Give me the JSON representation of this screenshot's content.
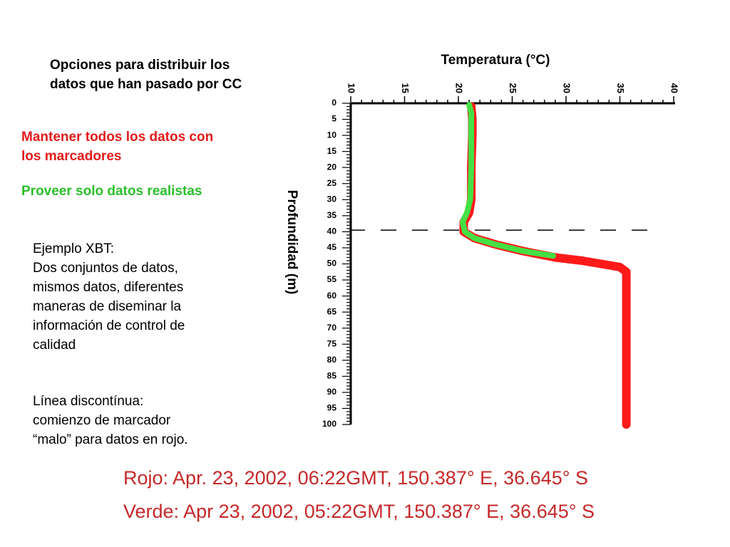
{
  "colors": {
    "red_series": "#ff1a1a",
    "green_series": "#44e044",
    "red_text": "#e31a1a",
    "green_text": "#2bbf2b",
    "caption_text": "#c62828"
  },
  "notes": {
    "intro": [
      "Opciones para distribuir los",
      "datos que han pasado por CC"
    ],
    "keep_markers": [
      "Mantener todos los datos con",
      "los marcadores"
    ],
    "realistic_only": "Proveer solo datos realistas",
    "xbt_example": [
      "Ejemplo XBT:",
      "Dos conjuntos de datos,",
      "mismos datos, diferentes",
      "maneras de diseminar la",
      "información de control de",
      "calidad"
    ],
    "dashed_line": [
      "Línea discontínua:",
      "comienzo de marcador",
      "“malo” para datos en rojo."
    ]
  },
  "captions": {
    "red": "Rojo: Apr. 23, 2002,  06:22GMT, 150.387° E, 36.645° S",
    "green": "Verde: Apr 23, 2002, 05:22GMT, 150.387° E, 36.645° S"
  },
  "chart_data": {
    "type": "line",
    "xlabel": "Temperatura (°C)",
    "ylabel": "Profundidad (m)",
    "xlim": [
      10,
      40
    ],
    "ylim": [
      0,
      100
    ],
    "x_ticks": [
      "10",
      "15",
      "20",
      "25",
      "30",
      "35",
      "40"
    ],
    "y_ticks": [
      "0",
      "5",
      "10",
      "15",
      "20",
      "25",
      "30",
      "35",
      "40",
      "45",
      "50",
      "55",
      "60",
      "65",
      "70",
      "75",
      "80",
      "85",
      "90",
      "95",
      "100"
    ],
    "reference_line": {
      "depth": 39.5,
      "style": "dashed"
    },
    "series": [
      {
        "name": "Rojo",
        "color": "#ff1a1a",
        "points": [
          [
            21.2,
            1
          ],
          [
            21.3,
            5
          ],
          [
            21.3,
            10
          ],
          [
            21.2,
            20
          ],
          [
            21.2,
            30
          ],
          [
            21.0,
            34
          ],
          [
            20.5,
            37
          ],
          [
            20.5,
            40
          ],
          [
            21.5,
            42
          ],
          [
            23.5,
            44
          ],
          [
            26.0,
            46
          ],
          [
            29.0,
            48
          ],
          [
            31.5,
            49
          ],
          [
            35.0,
            51
          ],
          [
            35.6,
            52.5
          ],
          [
            35.6,
            60
          ],
          [
            35.6,
            70
          ],
          [
            35.6,
            80
          ],
          [
            35.6,
            90
          ],
          [
            35.6,
            100
          ]
        ]
      },
      {
        "name": "Verde",
        "color": "#44e044",
        "points": [
          [
            21.0,
            0.5
          ],
          [
            21.2,
            3
          ],
          [
            21.2,
            10
          ],
          [
            21.2,
            20
          ],
          [
            21.1,
            30
          ],
          [
            20.8,
            34
          ],
          [
            20.4,
            37
          ],
          [
            20.6,
            40
          ],
          [
            21.5,
            42
          ],
          [
            23.5,
            44
          ],
          [
            26.0,
            46
          ],
          [
            28.8,
            47.5
          ]
        ]
      }
    ]
  }
}
